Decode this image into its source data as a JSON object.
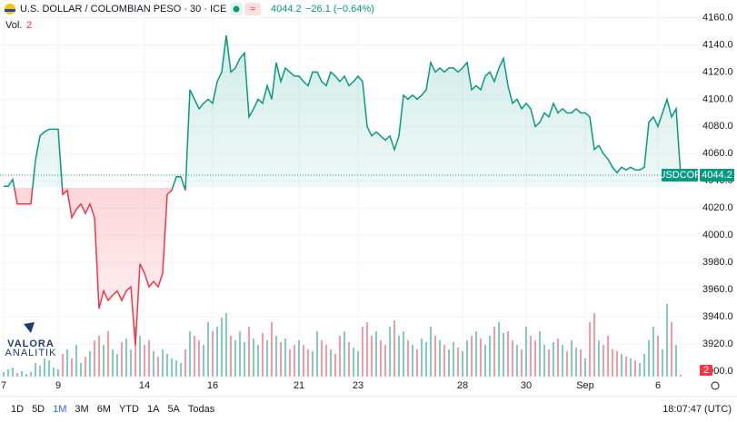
{
  "header": {
    "title": "U.S. DOLLAR / COLOMBIAN PESO · 30 · ICE",
    "change": "−26.1 (−0.64%)",
    "volume_label": "Vol."
  },
  "chart_data": {
    "type": "line",
    "categories": [
      "7",
      null,
      null,
      null,
      null,
      null,
      null,
      null,
      null,
      null,
      null,
      null,
      "9",
      null,
      null,
      null,
      null,
      null,
      null,
      null,
      null,
      null,
      null,
      null,
      null,
      null,
      null,
      null,
      null,
      null,
      null,
      "14",
      null,
      null,
      null,
      null,
      null,
      null,
      null,
      null,
      null,
      null,
      null,
      null,
      null,
      null,
      "16",
      null,
      null,
      null,
      null,
      null,
      null,
      null,
      null,
      null,
      null,
      null,
      null,
      null,
      null,
      null,
      null,
      null,
      null,
      "21",
      null,
      null,
      null,
      null,
      null,
      null,
      null,
      null,
      null,
      null,
      null,
      null,
      "23",
      null,
      null,
      null,
      null,
      null,
      null,
      null,
      null,
      null,
      null,
      null,
      null,
      null,
      null,
      null,
      null,
      null,
      null,
      null,
      null,
      null,
      null,
      "28",
      null,
      null,
      null,
      null,
      null,
      null,
      null,
      null,
      null,
      null,
      null,
      null,
      null,
      "30",
      null,
      null,
      null,
      null,
      null,
      null,
      null,
      null,
      null,
      null,
      null,
      null,
      "Sep",
      null,
      null,
      null,
      null,
      null,
      null,
      null,
      null,
      null,
      null,
      null,
      null,
      null,
      null,
      null,
      "6",
      null,
      null,
      null,
      null,
      null
    ],
    "series": [
      {
        "name": "USDCOP",
        "color_up": "#089981",
        "color_down": "#f23645",
        "values": [
          4036,
          4036,
          4041,
          4023,
          4023,
          4023,
          4023,
          4055,
          4073,
          4076,
          4078,
          4078,
          4078,
          4030,
          4033,
          4013,
          4019,
          4023,
          4016,
          4023,
          4013,
          3946,
          3959,
          3952,
          3956,
          3959,
          3952,
          3959,
          3962,
          3919,
          3979,
          3972,
          3962,
          3966,
          3962,
          3972,
          4030,
          4033,
          4043,
          4043,
          4033,
          4107,
          4100,
          4093,
          4097,
          4100,
          4097,
          4113,
          4120,
          4147,
          4120,
          4123,
          4130,
          4134,
          4087,
          4093,
          4100,
          4097,
          4110,
          4100,
          4127,
          4113,
          4123,
          4120,
          4117,
          4117,
          4113,
          4110,
          4120,
          4120,
          4113,
          4110,
          4120,
          4117,
          4113,
          4117,
          4110,
          4113,
          4117,
          4113,
          4080,
          4073,
          4076,
          4073,
          4070,
          4073,
          4063,
          4073,
          4103,
          4100,
          4103,
          4100,
          4103,
          4107,
          4127,
          4120,
          4123,
          4120,
          4123,
          4123,
          4120,
          4123,
          4127,
          4107,
          4110,
          4107,
          4117,
          4120,
          4113,
          4123,
          4130,
          4110,
          4097,
          4100,
          4093,
          4097,
          4093,
          4080,
          4083,
          4090,
          4087,
          4097,
          4090,
          4093,
          4090,
          4090,
          4093,
          4090,
          4090,
          4087,
          4063,
          4066,
          4060,
          4056,
          4050,
          4046,
          4050,
          4048,
          4050,
          4048,
          4048,
          4050,
          4083,
          4087,
          4080,
          4090,
          4100,
          4087,
          4093,
          4044.2
        ]
      }
    ],
    "baseline": 4035,
    "ylim": [
      3896,
      4173
    ],
    "yticks": [
      {
        "value": 3900,
        "label": "3900.0"
      },
      {
        "value": 3920,
        "label": "3920.0"
      },
      {
        "value": 3940,
        "label": "3940.0"
      },
      {
        "value": 3960,
        "label": "3960.0"
      },
      {
        "value": 3980,
        "label": "3980.0"
      },
      {
        "value": 4000,
        "label": "4000.0"
      },
      {
        "value": 4020,
        "label": "4020.0"
      },
      {
        "value": 4040,
        "label": "4040.0"
      },
      {
        "value": 4060,
        "label": "4060.0"
      },
      {
        "value": 4080,
        "label": "4080.0"
      },
      {
        "value": 4100,
        "label": "4100.0"
      },
      {
        "value": 4120,
        "label": "4120.0"
      },
      {
        "value": 4140,
        "label": "4140.0"
      },
      {
        "value": 4160,
        "label": "4160.0"
      }
    ],
    "grid": true,
    "volume": {
      "lim": [
        0,
        90
      ],
      "current": 2,
      "values": [
        5,
        8,
        10,
        4,
        6,
        3,
        5,
        15,
        12,
        20,
        18,
        10,
        8,
        25,
        30,
        20,
        35,
        15,
        22,
        28,
        40,
        45,
        35,
        50,
        30,
        25,
        38,
        42,
        30,
        55,
        45,
        35,
        40,
        28,
        22,
        30,
        25,
        20,
        18,
        15,
        30,
        50,
        45,
        40,
        35,
        60,
        50,
        55,
        65,
        70,
        45,
        40,
        50,
        38,
        55,
        42,
        35,
        48,
        40,
        60,
        45,
        38,
        42,
        30,
        35,
        40,
        35,
        30,
        28,
        50,
        40,
        35,
        30,
        25,
        45,
        50,
        38,
        32,
        28,
        55,
        60,
        45,
        50,
        40,
        35,
        55,
        62,
        45,
        50,
        40,
        35,
        30,
        42,
        38,
        55,
        45,
        40,
        35,
        30,
        38,
        32,
        28,
        40,
        45,
        50,
        42,
        35,
        45,
        55,
        60,
        48,
        50,
        40,
        35,
        30,
        55,
        45,
        40,
        50,
        35,
        30,
        38,
        42,
        35,
        28,
        40,
        32,
        30,
        20,
        60,
        70,
        40,
        35,
        45,
        30,
        28,
        25,
        22,
        20,
        18,
        15,
        25,
        40,
        55,
        45,
        30,
        80,
        60,
        35,
        2
      ]
    }
  },
  "toolbar": {
    "ranges": [
      "1D",
      "5D",
      "1M",
      "3M",
      "6M",
      "YTD",
      "1A",
      "5A",
      "Todas"
    ],
    "selected": "1M",
    "clock": "18:07:47 (UTC)"
  },
  "logo": {
    "name": "VALORA",
    "sub": "ANALITIK"
  }
}
